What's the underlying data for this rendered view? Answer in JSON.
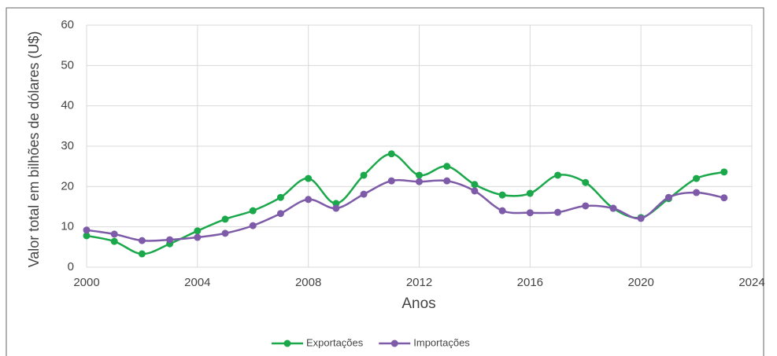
{
  "chart_data": {
    "type": "line",
    "x": [
      2000,
      2001,
      2002,
      2003,
      2004,
      2005,
      2006,
      2007,
      2008,
      2009,
      2010,
      2011,
      2012,
      2013,
      2014,
      2015,
      2016,
      2017,
      2018,
      2019,
      2020,
      2021,
      2022,
      2023
    ],
    "series": [
      {
        "name": "Exportações",
        "color": "#1aa84b",
        "values": [
          7.8,
          6.4,
          3.3,
          5.8,
          9.0,
          11.9,
          14.0,
          17.3,
          22.0,
          15.8,
          22.8,
          28.1,
          22.8,
          25.0,
          20.5,
          17.9,
          18.3,
          22.8,
          21.0,
          14.6,
          12.3,
          17.0,
          22.0,
          23.6
        ]
      },
      {
        "name": "Importações",
        "color": "#7e5ba8",
        "values": [
          9.2,
          8.2,
          6.6,
          6.8,
          7.4,
          8.4,
          10.3,
          13.3,
          16.8,
          14.6,
          18.1,
          21.4,
          21.2,
          21.4,
          18.9,
          14.0,
          13.5,
          13.6,
          15.2,
          14.6,
          12.1,
          17.3,
          18.5,
          17.2
        ]
      }
    ],
    "xlabel": "Anos",
    "ylabel": "Valor total em bilhões de dólares (U$)",
    "xlim": [
      2000,
      2024
    ],
    "xticks": [
      2000,
      2004,
      2008,
      2012,
      2016,
      2020,
      2024
    ],
    "ylim": [
      0,
      60
    ],
    "yticks": [
      0,
      10,
      20,
      30,
      40,
      50,
      60
    ],
    "grid": true,
    "legend": "bottom"
  }
}
